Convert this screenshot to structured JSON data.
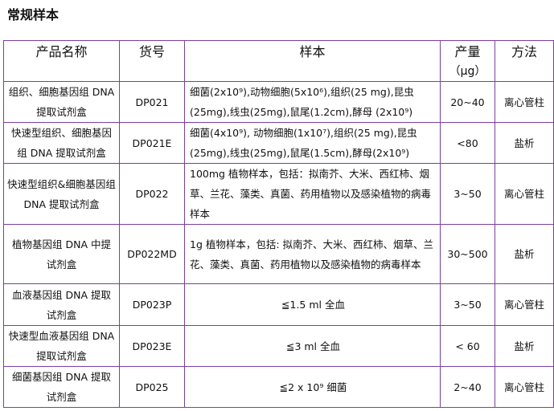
{
  "title": "常规样本",
  "table": {
    "headers": [
      "产品名称",
      "货号",
      "样本",
      "产量",
      "方法"
    ],
    "yield_unit": "（μg）",
    "rows": [
      {
        "name": "组织、细胞基因组 DNA 提取试剂盒",
        "code": "DP021",
        "sample": "细菌(2x10⁹),动物细胞(5x10⁶),组织(25 mg),昆虫(25mg),线虫(25mg),鼠尾(1.2cm),酵母 (2x10⁹)",
        "yield": "20~40",
        "method": "离心管柱"
      },
      {
        "name": "快速型组织、细胞基因组 DNA 提取试剂盒",
        "code": "DP021E",
        "sample": "细菌(4x10⁹), 动物细胞(1x10⁷),组织(25 mg),昆虫(25mg),线虫(25mg),鼠尾(1.5cm),酵母(2x10⁹)",
        "yield": "<80",
        "method": "盐析"
      },
      {
        "name": "快速型组织&细胞基因组 DNA 提取试剂盒",
        "code": "DP022",
        "sample": "100mg 植物样本，包括：拟南芥、大米、西红柿、烟草、兰花、藻类、真菌、药用植物以及感染植物的病毒样本",
        "yield": "3~50",
        "method": "离心管柱"
      },
      {
        "name": "植物基因组 DNA 中提试剂盒",
        "code": "DP022MD",
        "sample": "1g 植物样本，包括: 拟南芥、大米、西红柿、烟草、兰花、藻类、真菌、药用植物以及感染植物的病毒样本",
        "yield": "30~500",
        "method": "盐析"
      },
      {
        "name": "血液基因组 DNA 提取试剂盒",
        "code": "DP023P",
        "sample": "≦1.5 ml 全血",
        "yield": "3~50",
        "method": "离心管柱"
      },
      {
        "name": "快速型血液基因组 DNA 提取试剂盒",
        "code": "DP023E",
        "sample": "≦3 ml 全血",
        "yield": "< 60",
        "method": "盐析"
      },
      {
        "name": "细菌基因组 DNA 提取试剂盒",
        "code": "DP025",
        "sample": "≦2 x 10⁹ 细菌",
        "yield": "2~40",
        "method": "离心管柱"
      }
    ]
  },
  "colors": {
    "border": "#7b3f9e"
  }
}
